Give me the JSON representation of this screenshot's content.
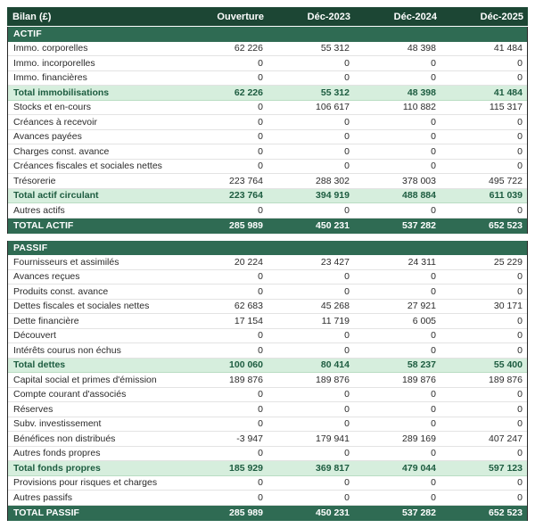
{
  "title": "Bilan (£)",
  "columns": [
    "Ouverture",
    "Déc-2023",
    "Déc-2024",
    "Déc-2025"
  ],
  "colors": {
    "header_bg": "#1c4634",
    "section_bg": "#2f6b53",
    "grand_total_bg": "#2f6b53",
    "subtotal_bg": "#d6eedd",
    "subtotal_text": "#1d5c40",
    "header_text": "#ffffff",
    "body_text": "#2b2b2b",
    "row_divider": "#e3e3e3",
    "outer_border": "#262626"
  },
  "sections": [
    {
      "name": "ACTIF",
      "rows": [
        {
          "label": "Immo. corporelles",
          "type": "data",
          "values": [
            "62 226",
            "55 312",
            "48 398",
            "41 484"
          ]
        },
        {
          "label": "Immo. incorporelles",
          "type": "data",
          "values": [
            "0",
            "0",
            "0",
            "0"
          ]
        },
        {
          "label": "Immo. financières",
          "type": "data",
          "values": [
            "0",
            "0",
            "0",
            "0"
          ]
        },
        {
          "label": "Total immobilisations",
          "type": "subtotal",
          "values": [
            "62 226",
            "55 312",
            "48 398",
            "41 484"
          ]
        },
        {
          "label": "Stocks et en-cours",
          "type": "data",
          "values": [
            "0",
            "106 617",
            "110 882",
            "115 317"
          ]
        },
        {
          "label": "Créances à recevoir",
          "type": "data",
          "values": [
            "0",
            "0",
            "0",
            "0"
          ]
        },
        {
          "label": "Avances payées",
          "type": "data",
          "values": [
            "0",
            "0",
            "0",
            "0"
          ]
        },
        {
          "label": "Charges const. avance",
          "type": "data",
          "values": [
            "0",
            "0",
            "0",
            "0"
          ]
        },
        {
          "label": "Créances fiscales et sociales nettes",
          "type": "data",
          "values": [
            "0",
            "0",
            "0",
            "0"
          ]
        },
        {
          "label": "Trésorerie",
          "type": "data",
          "values": [
            "223 764",
            "288 302",
            "378 003",
            "495 722"
          ]
        },
        {
          "label": "Total actif circulant",
          "type": "subtotal",
          "values": [
            "223 764",
            "394 919",
            "488 884",
            "611 039"
          ]
        },
        {
          "label": "Autres actifs",
          "type": "data",
          "values": [
            "0",
            "0",
            "0",
            "0"
          ]
        },
        {
          "label": "TOTAL ACTIF",
          "type": "grand",
          "values": [
            "285 989",
            "450 231",
            "537 282",
            "652 523"
          ]
        }
      ]
    },
    {
      "name": "PASSIF",
      "rows": [
        {
          "label": "Fournisseurs et assimilés",
          "type": "data",
          "values": [
            "20 224",
            "23 427",
            "24 311",
            "25 229"
          ]
        },
        {
          "label": "Avances reçues",
          "type": "data",
          "values": [
            "0",
            "0",
            "0",
            "0"
          ]
        },
        {
          "label": "Produits const. avance",
          "type": "data",
          "values": [
            "0",
            "0",
            "0",
            "0"
          ]
        },
        {
          "label": "Dettes fiscales et sociales nettes",
          "type": "data",
          "values": [
            "62 683",
            "45 268",
            "27 921",
            "30 171"
          ]
        },
        {
          "label": "Dette financière",
          "type": "data",
          "values": [
            "17 154",
            "11 719",
            "6 005",
            "0"
          ]
        },
        {
          "label": "Découvert",
          "type": "data",
          "values": [
            "0",
            "0",
            "0",
            "0"
          ]
        },
        {
          "label": "Intérêts courus non échus",
          "type": "data",
          "values": [
            "0",
            "0",
            "0",
            "0"
          ]
        },
        {
          "label": "Total dettes",
          "type": "subtotal",
          "values": [
            "100 060",
            "80 414",
            "58 237",
            "55 400"
          ]
        },
        {
          "label": "Capital social et primes d'émission",
          "type": "data",
          "values": [
            "189 876",
            "189 876",
            "189 876",
            "189 876"
          ]
        },
        {
          "label": "Compte courant d'associés",
          "type": "data",
          "values": [
            "0",
            "0",
            "0",
            "0"
          ]
        },
        {
          "label": "Réserves",
          "type": "data",
          "values": [
            "0",
            "0",
            "0",
            "0"
          ]
        },
        {
          "label": "Subv. investissement",
          "type": "data",
          "values": [
            "0",
            "0",
            "0",
            "0"
          ]
        },
        {
          "label": "Bénéfices non distribués",
          "type": "data",
          "values": [
            "-3 947",
            "179 941",
            "289 169",
            "407 247"
          ]
        },
        {
          "label": "Autres fonds propres",
          "type": "data",
          "values": [
            "0",
            "0",
            "0",
            "0"
          ]
        },
        {
          "label": "Total fonds propres",
          "type": "subtotal",
          "values": [
            "185 929",
            "369 817",
            "479 044",
            "597 123"
          ]
        },
        {
          "label": "Provisions pour risques et charges",
          "type": "data",
          "values": [
            "0",
            "0",
            "0",
            "0"
          ]
        },
        {
          "label": "Autres passifs",
          "type": "data",
          "values": [
            "0",
            "0",
            "0",
            "0"
          ]
        },
        {
          "label": "TOTAL PASSIF",
          "type": "grand",
          "values": [
            "285 989",
            "450 231",
            "537 282",
            "652 523"
          ]
        }
      ]
    }
  ]
}
